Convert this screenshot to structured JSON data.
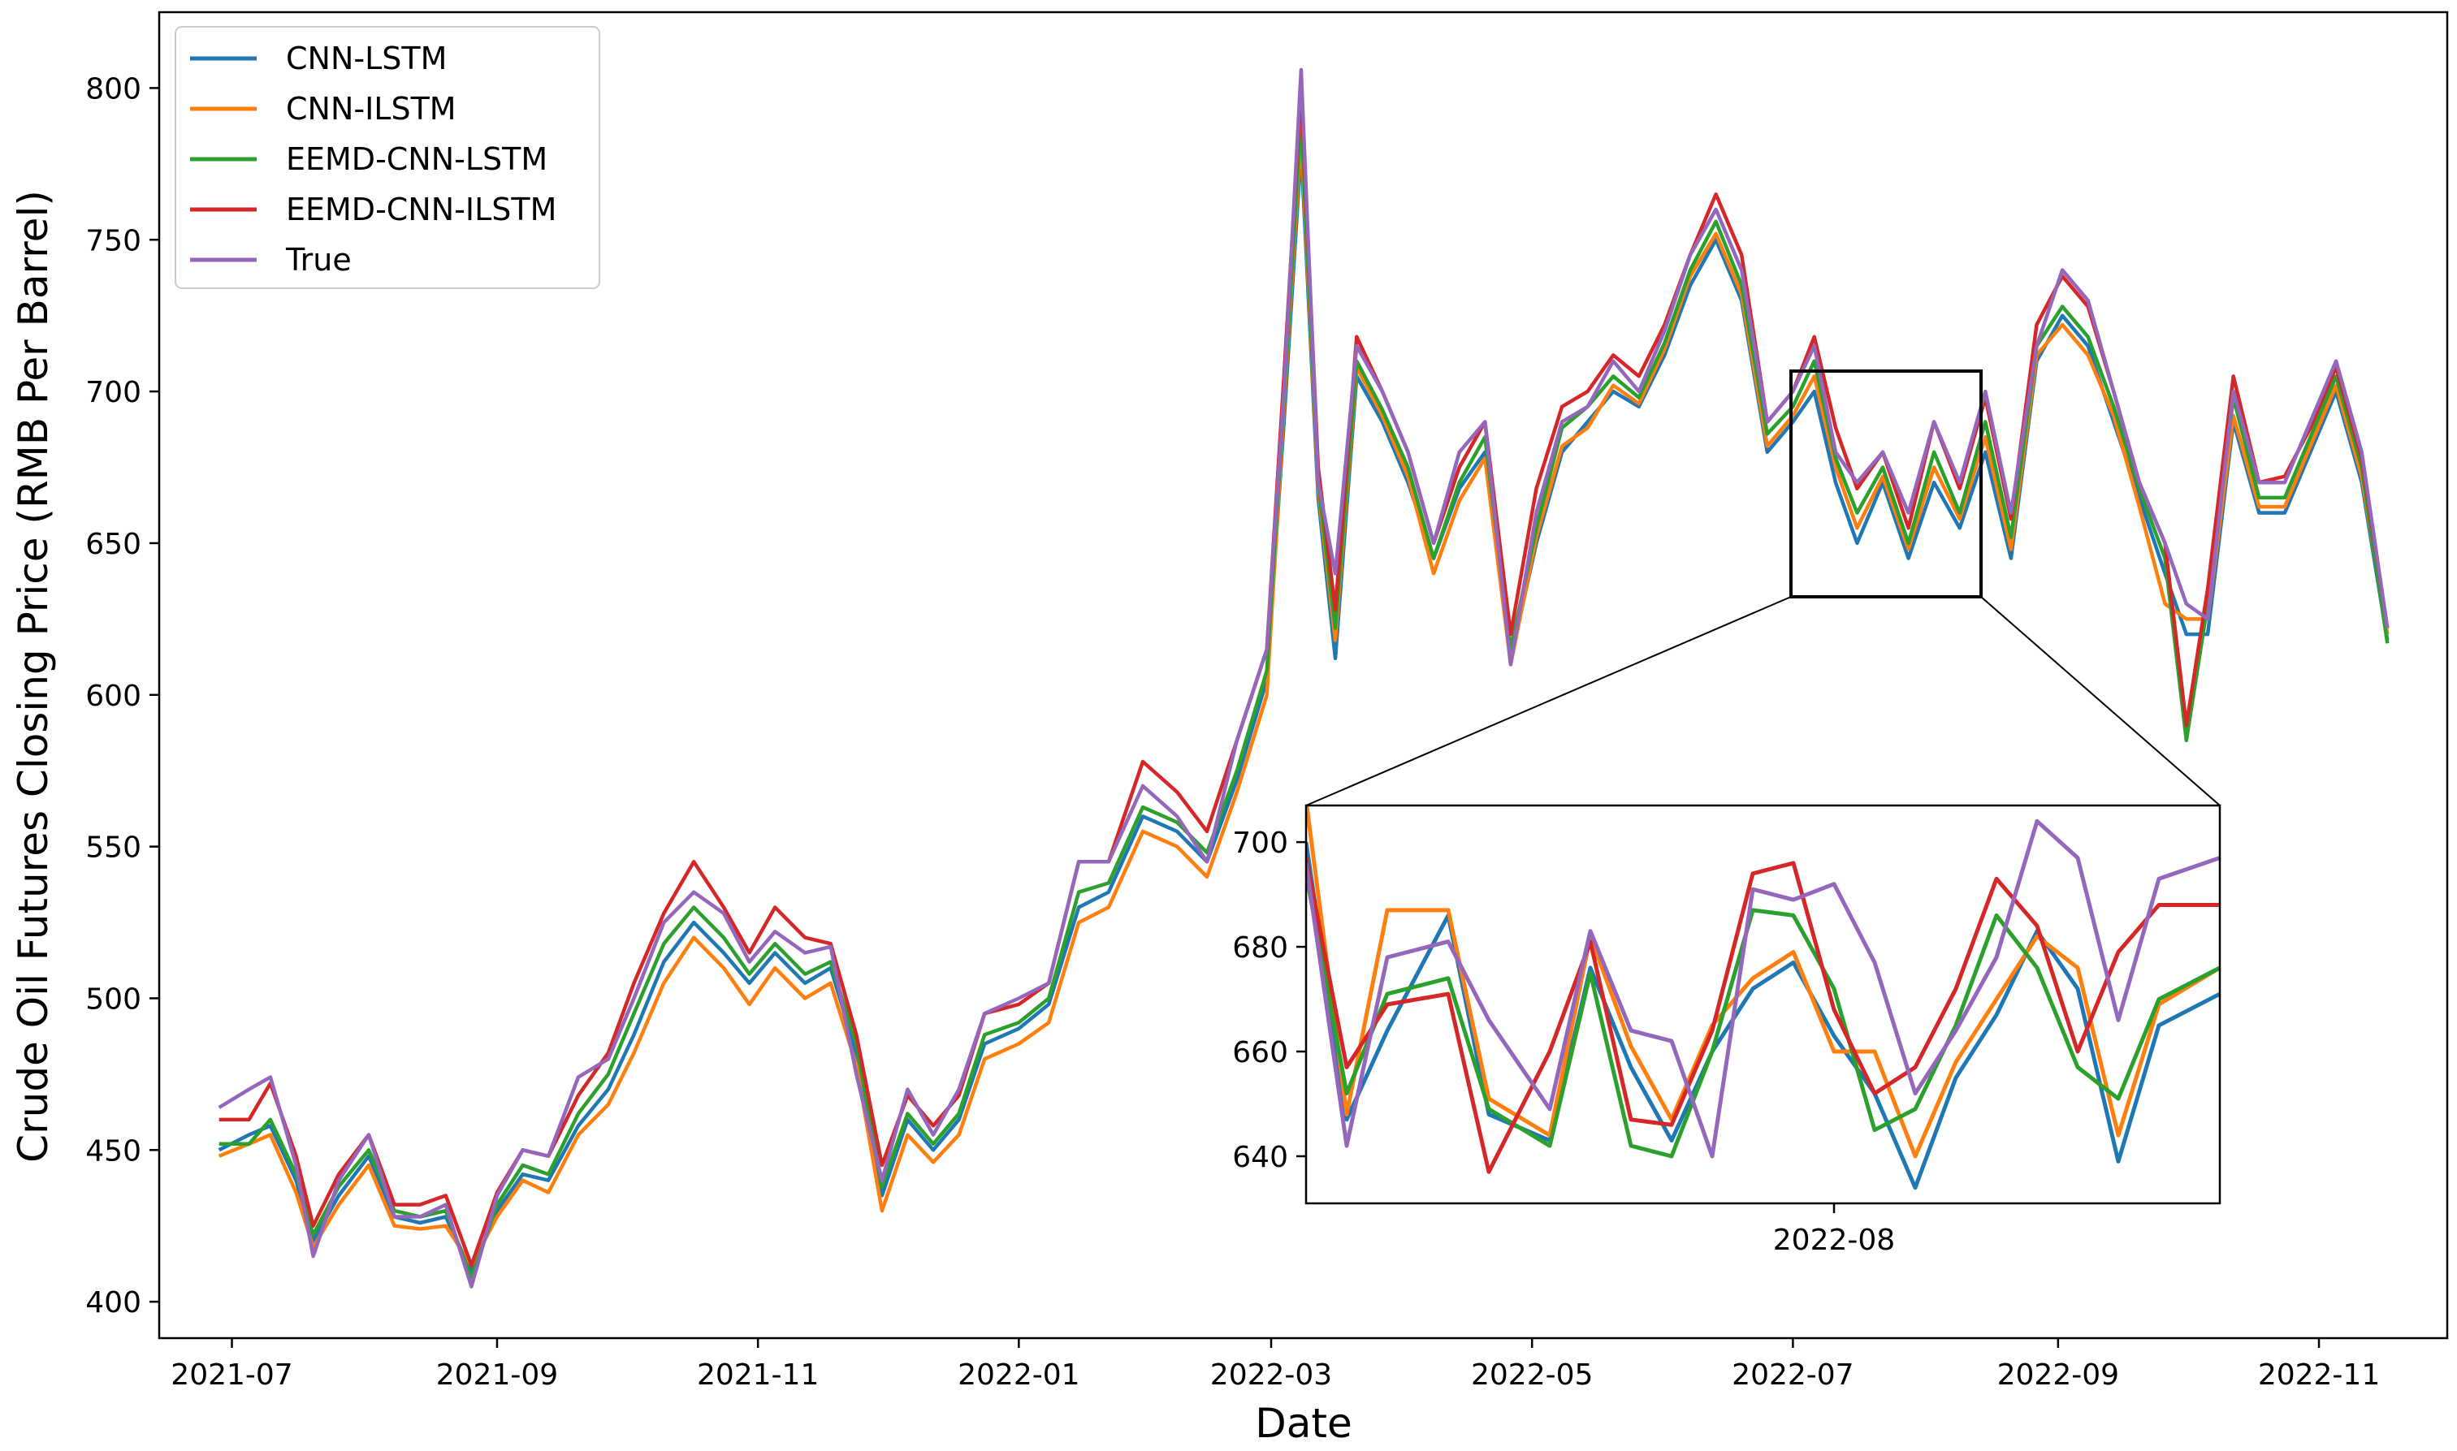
{
  "chart_data": {
    "type": "line",
    "title": "",
    "xlabel": "Date",
    "ylabel": "Crude Oil Futures Closing Price (RMB Per Barrel)",
    "x_ticks": [
      "2021-07",
      "2021-09",
      "2021-11",
      "2022-01",
      "2022-03",
      "2022-05",
      "2022-07",
      "2022-09",
      "2022-11"
    ],
    "y_ticks": [
      400,
      450,
      500,
      550,
      600,
      650,
      700,
      750,
      800
    ],
    "ylim": [
      388,
      825
    ],
    "xlim": [
      "2021-06-14",
      "2022-12-01"
    ],
    "grid": false,
    "legend_position": "top-left",
    "x": [
      "2021-06-28",
      "2021-07-05",
      "2021-07-10",
      "2021-07-16",
      "2021-07-20",
      "2021-07-26",
      "2021-08-02",
      "2021-08-08",
      "2021-08-14",
      "2021-08-20",
      "2021-08-26",
      "2021-09-01",
      "2021-09-07",
      "2021-09-13",
      "2021-09-20",
      "2021-09-27",
      "2021-10-03",
      "2021-10-10",
      "2021-10-17",
      "2021-10-24",
      "2021-10-30",
      "2021-11-05",
      "2021-11-12",
      "2021-11-18",
      "2021-11-24",
      "2021-11-30",
      "2021-12-06",
      "2021-12-12",
      "2021-12-18",
      "2021-12-24",
      "2022-01-01",
      "2022-01-08",
      "2022-01-15",
      "2022-01-22",
      "2022-01-30",
      "2022-02-07",
      "2022-02-14",
      "2022-02-21",
      "2022-02-28",
      "2022-03-04",
      "2022-03-08",
      "2022-03-12",
      "2022-03-16",
      "2022-03-21",
      "2022-03-27",
      "2022-04-02",
      "2022-04-08",
      "2022-04-14",
      "2022-04-20",
      "2022-04-26",
      "2022-05-02",
      "2022-05-08",
      "2022-05-14",
      "2022-05-20",
      "2022-05-26",
      "2022-06-01",
      "2022-06-07",
      "2022-06-13",
      "2022-06-19",
      "2022-06-25",
      "2022-07-01",
      "2022-07-06",
      "2022-07-11",
      "2022-07-16",
      "2022-07-22",
      "2022-07-28",
      "2022-08-03",
      "2022-08-09",
      "2022-08-15",
      "2022-08-21",
      "2022-08-27",
      "2022-09-02",
      "2022-09-08",
      "2022-09-14",
      "2022-09-20",
      "2022-09-26",
      "2022-10-01",
      "2022-10-06",
      "2022-10-12",
      "2022-10-18",
      "2022-10-24",
      "2022-10-30",
      "2022-11-05",
      "2022-11-11",
      "2022-11-17"
    ],
    "series": [
      {
        "name": "True",
        "color": "#9467bd",
        "values": [
          464,
          470,
          474,
          445,
          415,
          440,
          455,
          428,
          428,
          432,
          405,
          435,
          450,
          448,
          474,
          480,
          500,
          525,
          535,
          528,
          512,
          522,
          515,
          517,
          475,
          440,
          470,
          455,
          470,
          495,
          500,
          505,
          545,
          545,
          570,
          560,
          545,
          585,
          615,
          700,
          806,
          670,
          640,
          715,
          700,
          680,
          650,
          680,
          690,
          610,
          660,
          690,
          695,
          710,
          700,
          720,
          745,
          760,
          740,
          690,
          700,
          715,
          680,
          670,
          680,
          660,
          690,
          670,
          700,
          660,
          715,
          740,
          730,
          700,
          670,
          650,
          630,
          625,
          700,
          670,
          670,
          690,
          710,
          680,
          622
        ]
      },
      {
        "name": "CNN-LSTM",
        "color": "#1f77b4",
        "values": [
          450,
          455,
          458,
          440,
          420,
          435,
          448,
          428,
          426,
          428,
          410,
          430,
          442,
          440,
          458,
          470,
          488,
          512,
          525,
          515,
          505,
          515,
          505,
          510,
          482,
          435,
          460,
          450,
          460,
          485,
          490,
          498,
          530,
          535,
          560,
          555,
          545,
          572,
          605,
          690,
          780,
          665,
          612,
          705,
          690,
          670,
          645,
          668,
          680,
          612,
          650,
          680,
          690,
          700,
          695,
          712,
          735,
          750,
          730,
          680,
          690,
          700,
          670,
          650,
          670,
          645,
          670,
          655,
          680,
          645,
          710,
          725,
          715,
          690,
          665,
          640,
          620,
          620,
          690,
          660,
          660,
          680,
          700,
          670,
          618
        ]
      },
      {
        "name": "CNN-ILSTM",
        "color": "#ff7f0e",
        "values": [
          448,
          452,
          455,
          436,
          418,
          432,
          445,
          425,
          424,
          425,
          412,
          428,
          440,
          436,
          455,
          465,
          482,
          505,
          520,
          510,
          498,
          510,
          500,
          505,
          478,
          430,
          455,
          446,
          455,
          480,
          485,
          492,
          525,
          530,
          555,
          550,
          540,
          568,
          600,
          695,
          785,
          668,
          618,
          708,
          692,
          672,
          640,
          664,
          678,
          610,
          652,
          682,
          688,
          702,
          696,
          714,
          738,
          752,
          732,
          682,
          692,
          705,
          675,
          655,
          672,
          648,
          675,
          658,
          685,
          648,
          712,
          722,
          712,
          692,
          662,
          630,
          625,
          625,
          692,
          662,
          662,
          682,
          702,
          672,
          620
        ]
      },
      {
        "name": "EEMD-CNN-LSTM",
        "color": "#2ca02c",
        "values": [
          452,
          452,
          460,
          442,
          422,
          438,
          450,
          430,
          428,
          430,
          408,
          432,
          445,
          442,
          462,
          475,
          495,
          518,
          530,
          520,
          508,
          518,
          508,
          512,
          485,
          438,
          462,
          452,
          462,
          488,
          492,
          500,
          535,
          538,
          563,
          558,
          548,
          575,
          608,
          698,
          790,
          670,
          622,
          710,
          694,
          675,
          645,
          670,
          685,
          615,
          655,
          688,
          695,
          705,
          698,
          716,
          740,
          756,
          735,
          686,
          695,
          710,
          678,
          660,
          675,
          650,
          680,
          660,
          690,
          652,
          715,
          728,
          718,
          695,
          668,
          645,
          585,
          630,
          698,
          665,
          665,
          685,
          705,
          675,
          617
        ]
      },
      {
        "name": "EEMD-CNN-ILSTM",
        "color": "#d62728",
        "values": [
          460,
          460,
          472,
          448,
          425,
          442,
          455,
          432,
          432,
          435,
          412,
          436,
          450,
          448,
          468,
          482,
          505,
          528,
          545,
          530,
          515,
          530,
          520,
          518,
          488,
          445,
          468,
          458,
          468,
          495,
          498,
          505,
          545,
          545,
          578,
          568,
          555,
          585,
          615,
          705,
          800,
          675,
          628,
          718,
          700,
          680,
          650,
          675,
          690,
          620,
          668,
          695,
          700,
          712,
          705,
          722,
          745,
          765,
          745,
          690,
          700,
          718,
          688,
          668,
          680,
          655,
          690,
          668,
          698,
          658,
          722,
          738,
          728,
          700,
          670,
          650,
          590,
          635,
          705,
          670,
          672,
          688,
          708,
          678,
          622
        ]
      }
    ],
    "inset": {
      "x_ticks": [
        "2022-08"
      ],
      "y_ticks": [
        640,
        660,
        680,
        700
      ],
      "ylim": [
        631,
        707
      ],
      "xlim": [
        "2022-07-06",
        "2022-08-20"
      ],
      "x": [
        "2022-07-06",
        "2022-07-08",
        "2022-07-10",
        "2022-07-13",
        "2022-07-15",
        "2022-07-18",
        "2022-07-20",
        "2022-07-22",
        "2022-07-24",
        "2022-07-26",
        "2022-07-28",
        "2022-07-30",
        "2022-08-01",
        "2022-08-03",
        "2022-08-05",
        "2022-08-07",
        "2022-08-09",
        "2022-08-11",
        "2022-08-13",
        "2022-08-15",
        "2022-08-17",
        "2022-08-20"
      ],
      "series": [
        {
          "name": "True",
          "values": [
            696,
            642,
            678,
            681,
            666,
            649,
            683,
            664,
            662,
            640,
            691,
            689,
            692,
            677,
            652,
            664,
            678,
            704,
            697,
            666,
            693,
            697
          ]
        },
        {
          "name": "CNN-LSTM",
          "values": [
            700,
            647,
            664,
            686,
            648,
            643,
            676,
            657,
            643,
            660,
            672,
            677,
            663,
            652,
            634,
            655,
            667,
            683,
            672,
            639,
            665,
            671
          ]
        },
        {
          "name": "CNN-ILSTM",
          "values": [
            708,
            648,
            687,
            687,
            651,
            644,
            682,
            661,
            647,
            665,
            674,
            679,
            660,
            660,
            640,
            658,
            670,
            682,
            676,
            644,
            669,
            676
          ]
        },
        {
          "name": "EEMD-CNN-LSTM",
          "values": [
            694,
            652,
            671,
            674,
            649,
            642,
            675,
            642,
            640,
            660,
            687,
            686,
            672,
            645,
            649,
            665,
            686,
            676,
            657,
            651,
            670,
            676
          ]
        },
        {
          "name": "EEMD-CNN-ILSTM",
          "values": [
            697,
            657,
            669,
            671,
            637,
            660,
            681,
            647,
            646,
            664,
            694,
            696,
            668,
            652,
            657,
            672,
            693,
            684,
            660,
            679,
            688,
            688
          ]
        }
      ]
    }
  }
}
